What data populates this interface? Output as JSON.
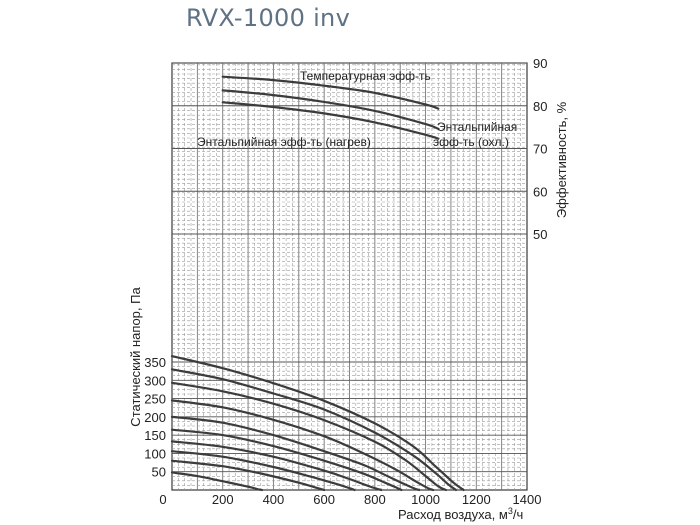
{
  "chart_data": {
    "type": "line",
    "title": "RVX-1000 inv",
    "xlabel": "Расход воздуха, м",
    "xlabel_sup": "3",
    "xlabel_tail": "/ч",
    "ylabel": "Статический напор, Па",
    "y2label": "Эффективность, %",
    "xlim": [
      0,
      1400
    ],
    "ylim": [
      0,
      370
    ],
    "y2lim": [
      50,
      90
    ],
    "x_ticks": [
      0,
      200,
      400,
      600,
      800,
      1000,
      1200,
      1400
    ],
    "y_ticks": [
      50,
      100,
      150,
      200,
      250,
      300,
      350
    ],
    "y_zero_label": "0",
    "y2_ticks": [
      50,
      60,
      70,
      80,
      90
    ],
    "grid": true,
    "pressure_series": [
      {
        "x": [
          0,
          200,
          400,
          600,
          800,
          950,
          1040,
          1110,
          1150
        ],
        "y": [
          366,
          333,
          292,
          244,
          182,
          120,
          64,
          20,
          0
        ]
      },
      {
        "x": [
          0,
          200,
          400,
          600,
          800,
          950,
          1040,
          1090,
          1120
        ],
        "y": [
          330,
          303,
          264,
          220,
          157,
          95,
          46,
          15,
          0
        ]
      },
      {
        "x": [
          0,
          200,
          400,
          600,
          800,
          920,
          1000,
          1050,
          1080
        ],
        "y": [
          293,
          270,
          236,
          191,
          132,
          82,
          38,
          10,
          0
        ]
      },
      {
        "x": [
          0,
          200,
          400,
          600,
          750,
          880,
          960,
          1010,
          1030
        ],
        "y": [
          245,
          226,
          192,
          147,
          102,
          57,
          24,
          5,
          0
        ]
      },
      {
        "x": [
          0,
          200,
          400,
          600,
          750,
          850,
          920,
          960,
          975
        ],
        "y": [
          200,
          184,
          150,
          106,
          70,
          38,
          15,
          3,
          0
        ]
      },
      {
        "x": [
          0,
          200,
          400,
          600,
          750,
          840,
          890,
          905
        ],
        "y": [
          165,
          150,
          120,
          80,
          46,
          20,
          5,
          0
        ]
      },
      {
        "x": [
          0,
          200,
          400,
          600,
          700,
          770,
          810,
          825
        ],
        "y": [
          133,
          118,
          91,
          53,
          30,
          12,
          3,
          0
        ]
      },
      {
        "x": [
          0,
          200,
          400,
          550,
          650,
          700,
          720
        ],
        "y": [
          106,
          91,
          63,
          36,
          16,
          5,
          0
        ]
      },
      {
        "x": [
          0,
          200,
          350,
          500,
          570,
          600
        ],
        "y": [
          80,
          65,
          45,
          20,
          6,
          0
        ]
      },
      {
        "x": [
          0,
          100,
          200,
          300,
          340,
          355
        ],
        "y": [
          48,
          38,
          24,
          9,
          2,
          0
        ]
      }
    ],
    "efficiency_series": [
      {
        "name": "Температурная эфф-ть",
        "x": [
          200,
          400,
          600,
          800,
          1000,
          1050
        ],
        "y": [
          86.8,
          86.0,
          84.7,
          83.0,
          80.3,
          79.3
        ]
      },
      {
        "name": "Энтальпийная эфф-ть (охл.)",
        "x": [
          200,
          400,
          600,
          800,
          1000,
          1050
        ],
        "y": [
          83.6,
          82.5,
          80.9,
          78.8,
          75.7,
          74.6
        ]
      },
      {
        "name": "Энтальпийная эфф-ть (нагрев)",
        "x": [
          200,
          400,
          600,
          800,
          1000,
          1050
        ],
        "y": [
          80.8,
          79.7,
          78.2,
          76.1,
          73.2,
          72.3
        ]
      }
    ],
    "labels": {
      "temp": "Температурная эфф-ть",
      "enth_cool_1": "Энтальпийная",
      "enth_cool_2": "эфф-ть (охл.)",
      "enth_heat": "Энтальпийная эфф-ть (нагрев)"
    },
    "colors": {
      "curve": "#3c3c3c",
      "grid": "#9a9a9a",
      "title": "#5f7284"
    }
  }
}
